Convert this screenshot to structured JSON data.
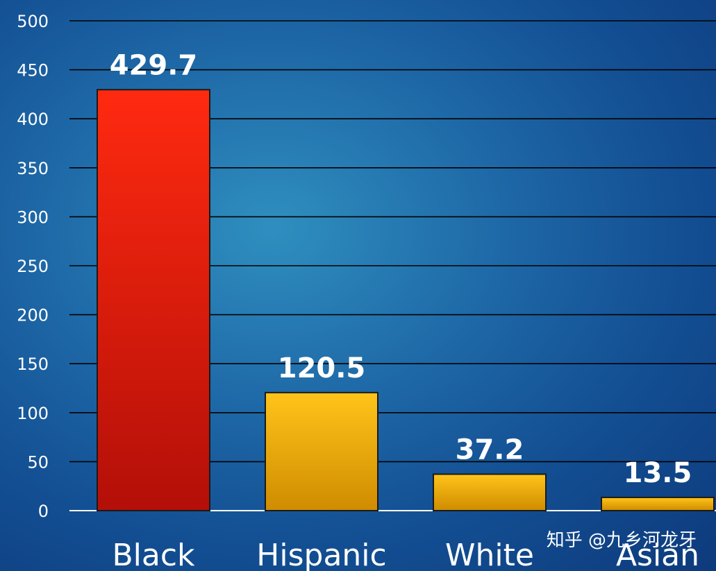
{
  "chart_data": {
    "type": "bar",
    "categories": [
      "Black",
      "Hispanic",
      "White",
      "Asian"
    ],
    "values": [
      429.7,
      120.5,
      37.2,
      13.5
    ],
    "value_labels": [
      "429.7",
      "120.5",
      "37.2",
      "13.5"
    ],
    "yticks": [
      "0",
      "50",
      "100",
      "150",
      "200",
      "250",
      "300",
      "350",
      "400",
      "450",
      "500"
    ],
    "ylim": [
      0,
      500
    ],
    "grid": true,
    "bar_colors": [
      "#e8180a",
      "#f2ad05",
      "#f2ad05",
      "#f2ad05"
    ],
    "colors": {
      "highlight_top": "#ff2a10",
      "highlight_bottom": "#b30f08",
      "regular_top": "#ffc41a",
      "regular_bottom": "#cf8c00",
      "gridline": "#000000",
      "baseline": "#ffffff",
      "text": "#ffffff"
    }
  },
  "watermark": "知乎 @九乡河龙牙"
}
